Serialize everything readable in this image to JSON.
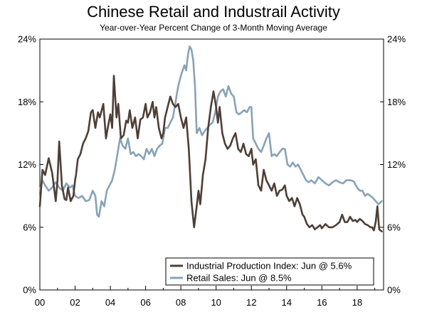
{
  "chart_data": {
    "type": "line",
    "title": "Chinese Retail and Industrail Activity",
    "subtitle": "Year-over-Year Percent Change of 3-Month Moving Average",
    "xlabel": "",
    "ylabel": "",
    "xlim": [
      2000,
      2019.5
    ],
    "ylim": [
      0,
      24
    ],
    "x_ticks": [
      2000,
      2002,
      2004,
      2006,
      2008,
      2010,
      2012,
      2014,
      2016,
      2018
    ],
    "x_tick_labels": [
      "00",
      "02",
      "04",
      "06",
      "08",
      "10",
      "12",
      "14",
      "16",
      "18"
    ],
    "y_ticks": [
      0,
      6,
      12,
      18,
      24
    ],
    "y_tick_labels": [
      "0%",
      "6%",
      "12%",
      "18%",
      "24%"
    ],
    "grid": false,
    "legend_position": "bottom-right",
    "series": [
      {
        "name": "Industrial Production Index: Jun @ 5.6%",
        "color": "#4e3e35",
        "x": [
          2000.0,
          2000.15,
          2000.3,
          2000.5,
          2000.7,
          2000.9,
          2001.0,
          2001.1,
          2001.25,
          2001.4,
          2001.5,
          2001.6,
          2001.75,
          2001.9,
          2002.0,
          2002.05,
          2002.15,
          2002.3,
          2002.45,
          2002.6,
          2002.75,
          2002.9,
          2003.0,
          2003.15,
          2003.3,
          2003.4,
          2003.6,
          2003.75,
          2003.85,
          2004.0,
          2004.1,
          2004.2,
          2004.35,
          2004.45,
          2004.6,
          2004.75,
          2004.9,
          2005.0,
          2005.1,
          2005.25,
          2005.4,
          2005.55,
          2005.7,
          2005.85,
          2006.0,
          2006.1,
          2006.25,
          2006.4,
          2006.5,
          2006.6,
          2006.75,
          2006.9,
          2007.0,
          2007.1,
          2007.25,
          2007.4,
          2007.55,
          2007.7,
          2007.85,
          2008.0,
          2008.15,
          2008.3,
          2008.45,
          2008.6,
          2008.75,
          2008.9,
          2009.0,
          2009.1,
          2009.25,
          2009.4,
          2009.55,
          2009.7,
          2009.85,
          2010.0,
          2010.1,
          2010.2,
          2010.35,
          2010.5,
          2010.65,
          2010.8,
          2010.95,
          2011.1,
          2011.25,
          2011.4,
          2011.55,
          2011.7,
          2011.85,
          2012.0,
          2012.1,
          2012.25,
          2012.4,
          2012.55,
          2012.7,
          2012.85,
          2013.0,
          2013.15,
          2013.3,
          2013.45,
          2013.6,
          2013.75,
          2013.9,
          2014.0,
          2014.15,
          2014.3,
          2014.45,
          2014.6,
          2014.75,
          2014.9,
          2015.0,
          2015.15,
          2015.3,
          2015.45,
          2015.6,
          2015.75,
          2015.9,
          2016.0,
          2016.2,
          2016.4,
          2016.6,
          2016.8,
          2017.0,
          2017.15,
          2017.3,
          2017.45,
          2017.6,
          2017.75,
          2017.9,
          2018.0,
          2018.15,
          2018.3,
          2018.45,
          2018.6,
          2018.75,
          2018.85,
          2018.95,
          2019.05,
          2019.15,
          2019.25,
          2019.4
        ],
        "values": [
          8.0,
          11.5,
          11.0,
          12.6,
          11.2,
          8.5,
          10.5,
          14.2,
          10.0,
          8.7,
          8.6,
          9.8,
          8.5,
          9.0,
          10.5,
          11.0,
          12.5,
          13.0,
          14.0,
          14.5,
          15.2,
          17.0,
          17.2,
          15.5,
          17.0,
          16.5,
          17.8,
          14.5,
          15.5,
          16.8,
          15.5,
          20.5,
          16.5,
          17.8,
          14.5,
          14.8,
          16.2,
          16.0,
          17.2,
          15.5,
          16.5,
          14.5,
          16.3,
          16.5,
          17.8,
          16.5,
          17.0,
          18.0,
          16.5,
          17.5,
          15.5,
          14.5,
          15.0,
          16.5,
          17.5,
          18.5,
          17.8,
          17.5,
          17.8,
          16.5,
          15.5,
          16.5,
          13.5,
          8.5,
          6.0,
          8.0,
          9.5,
          8.2,
          11.0,
          12.5,
          15.5,
          17.5,
          19.0,
          17.5,
          16.0,
          17.5,
          15.0,
          14.0,
          13.5,
          13.8,
          14.5,
          15.0,
          13.5,
          13.2,
          14.0,
          13.0,
          12.8,
          13.5,
          12.0,
          12.5,
          10.0,
          9.5,
          11.5,
          10.5,
          10.0,
          9.5,
          10.2,
          9.0,
          9.5,
          9.6,
          10.0,
          9.0,
          8.5,
          8.8,
          8.0,
          8.8,
          8.2,
          7.2,
          7.0,
          6.3,
          6.0,
          6.2,
          5.8,
          6.0,
          6.2,
          5.9,
          6.3,
          6.0,
          6.0,
          6.2,
          6.5,
          7.2,
          6.5,
          6.5,
          7.0,
          6.6,
          6.7,
          6.5,
          6.8,
          6.6,
          6.3,
          6.2,
          6.0,
          6.0,
          5.7,
          6.5,
          8.0,
          5.8,
          5.6
        ]
      },
      {
        "name": "Retail Sales: Jun @ 8.5%",
        "color": "#87a3b8",
        "x": [
          2000.0,
          2000.15,
          2000.3,
          2000.5,
          2000.7,
          2000.9,
          2001.1,
          2001.3,
          2001.5,
          2001.7,
          2001.85,
          2002.0,
          2002.2,
          2002.4,
          2002.6,
          2002.8,
          2003.0,
          2003.15,
          2003.25,
          2003.35,
          2003.5,
          2003.65,
          2003.8,
          2003.95,
          2004.1,
          2004.25,
          2004.4,
          2004.55,
          2004.7,
          2004.85,
          2005.0,
          2005.15,
          2005.3,
          2005.45,
          2005.6,
          2005.75,
          2005.9,
          2006.05,
          2006.2,
          2006.35,
          2006.5,
          2006.65,
          2006.8,
          2006.95,
          2007.1,
          2007.25,
          2007.4,
          2007.55,
          2007.7,
          2007.85,
          2008.0,
          2008.1,
          2008.2,
          2008.3,
          2008.4,
          2008.5,
          2008.6,
          2008.7,
          2008.8,
          2008.9,
          2009.05,
          2009.2,
          2009.35,
          2009.5,
          2009.65,
          2009.8,
          2009.95,
          2010.1,
          2010.25,
          2010.4,
          2010.55,
          2010.7,
          2010.85,
          2011.0,
          2011.15,
          2011.3,
          2011.45,
          2011.6,
          2011.75,
          2011.9,
          2012.0,
          2012.1,
          2012.25,
          2012.4,
          2012.55,
          2012.7,
          2012.85,
          2013.0,
          2013.15,
          2013.3,
          2013.45,
          2013.6,
          2013.75,
          2013.9,
          2014.05,
          2014.2,
          2014.35,
          2014.5,
          2014.65,
          2014.8,
          2014.95,
          2015.1,
          2015.25,
          2015.4,
          2015.6,
          2015.8,
          2016.0,
          2016.2,
          2016.4,
          2016.6,
          2016.8,
          2017.0,
          2017.2,
          2017.4,
          2017.6,
          2017.8,
          2018.0,
          2018.15,
          2018.3,
          2018.45,
          2018.6,
          2018.75,
          2018.9,
          2019.05,
          2019.2,
          2019.4
        ],
        "values": [
          9.5,
          10.5,
          10.0,
          9.5,
          9.8,
          10.3,
          9.8,
          9.5,
          10.2,
          9.8,
          10.0,
          9.0,
          8.8,
          9.0,
          8.5,
          8.6,
          9.5,
          9.0,
          7.2,
          7.0,
          8.5,
          8.0,
          9.5,
          10.0,
          10.5,
          11.5,
          13.0,
          14.5,
          13.8,
          13.5,
          14.5,
          13.0,
          13.2,
          12.8,
          13.0,
          12.8,
          12.5,
          13.5,
          13.0,
          13.5,
          12.8,
          13.5,
          13.8,
          14.0,
          15.5,
          15.5,
          16.0,
          16.5,
          18.0,
          19.5,
          20.5,
          21.0,
          21.5,
          21.0,
          22.5,
          23.3,
          23.0,
          22.0,
          19.5,
          15.0,
          15.5,
          14.8,
          15.2,
          15.5,
          15.8,
          16.0,
          17.0,
          18.5,
          19.0,
          19.2,
          18.5,
          19.5,
          18.8,
          18.5,
          17.0,
          16.8,
          17.0,
          17.2,
          17.0,
          17.5,
          17.5,
          14.5,
          14.0,
          13.5,
          13.2,
          13.8,
          14.5,
          15.0,
          12.8,
          13.0,
          12.8,
          13.2,
          13.5,
          13.5,
          12.0,
          11.8,
          12.2,
          11.8,
          12.0,
          11.5,
          11.0,
          10.5,
          10.3,
          10.5,
          10.2,
          10.8,
          10.5,
          10.2,
          10.0,
          10.3,
          10.5,
          10.3,
          10.2,
          10.5,
          10.5,
          10.4,
          9.8,
          9.5,
          9.5,
          9.0,
          9.2,
          9.0,
          8.8,
          8.5,
          8.2,
          8.5
        ]
      }
    ]
  }
}
